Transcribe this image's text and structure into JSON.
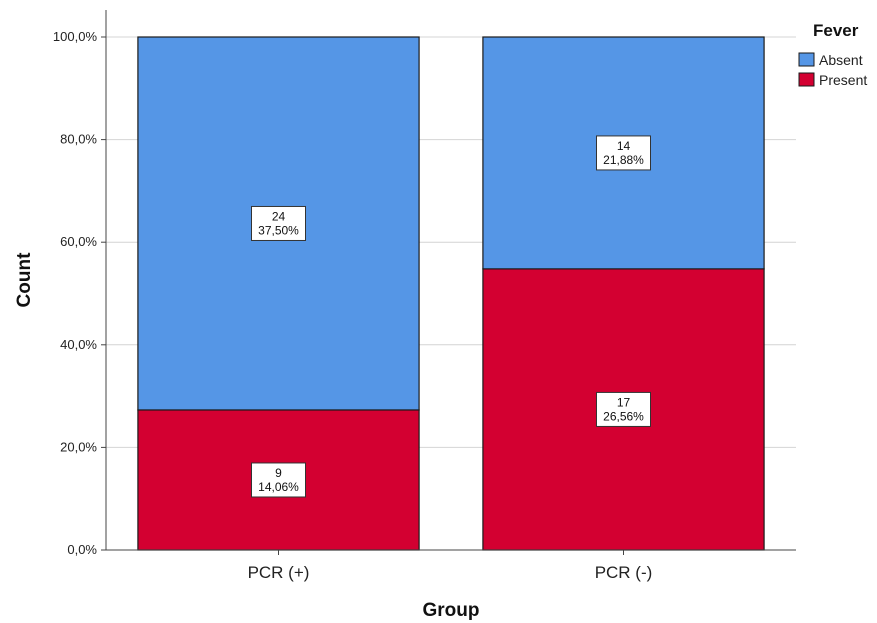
{
  "chart_data": {
    "type": "bar",
    "stacked": true,
    "xlabel": "Group",
    "ylabel": "Count",
    "categories": [
      "PCR (+)",
      "PCR (-)"
    ],
    "ylim": [
      0,
      100
    ],
    "y_ticks": [
      "0,0%",
      "20,0%",
      "40,0%",
      "60,0%",
      "80,0%",
      "100,0%"
    ],
    "grid": true,
    "legend": {
      "title": "Fever",
      "position": "top-right"
    },
    "series": [
      {
        "name": "Present",
        "color": "#d30031",
        "values": [
          27.3,
          54.8
        ],
        "counts": [
          "9",
          "17"
        ],
        "percent_labels": [
          "14,06%",
          "26,56%"
        ]
      },
      {
        "name": "Absent",
        "color": "#5596e6",
        "values": [
          72.7,
          45.2
        ],
        "counts": [
          "24",
          "14"
        ],
        "percent_labels": [
          "37,50%",
          "21,88%"
        ]
      }
    ]
  }
}
